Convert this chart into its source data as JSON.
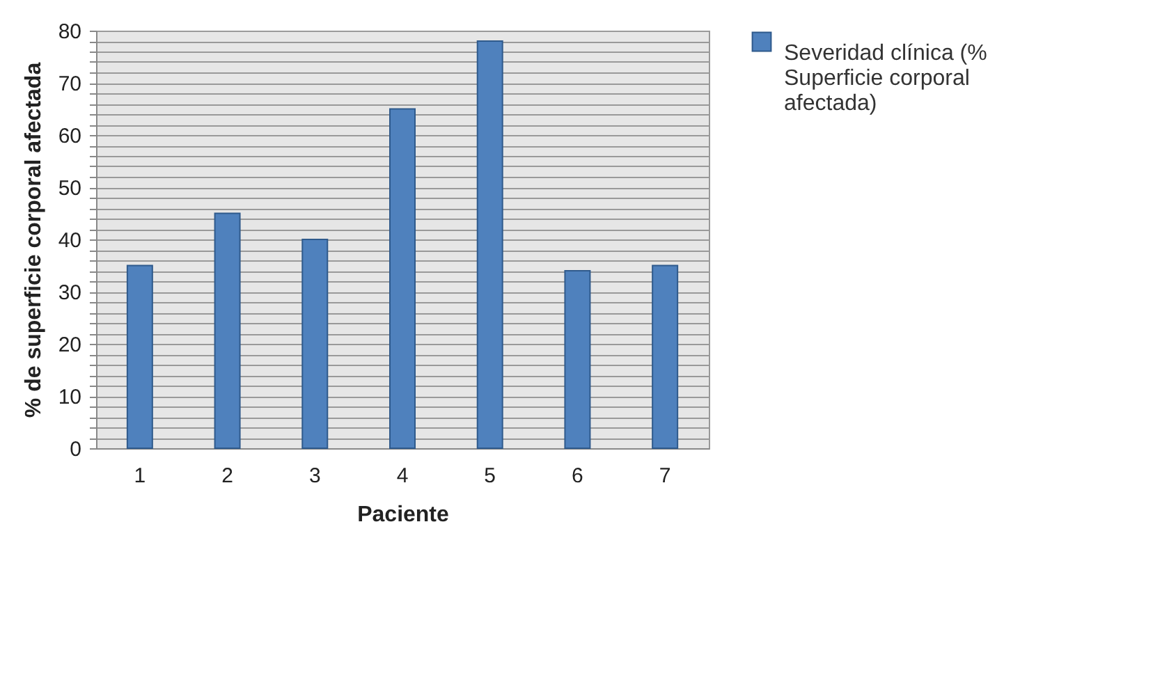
{
  "chart_data": {
    "type": "bar",
    "xlabel": "Paciente",
    "ylabel": "% de superficie corporal afectada",
    "categories": [
      "1",
      "2",
      "3",
      "4",
      "5",
      "6",
      "7"
    ],
    "series": [
      {
        "name": "Severidad clínica (% Superficie corporal afectada)",
        "color": "#4f81bd",
        "values": [
          35,
          45,
          40,
          65,
          78,
          34,
          35
        ]
      }
    ],
    "ylim": [
      0,
      80
    ],
    "yticks": [
      0,
      {
        "value": 2,
        "label": null
      },
      {
        "value": 4,
        "label": null
      },
      {
        "value": 6,
        "label": null
      },
      {
        "value": 8,
        "label": null
      },
      10,
      {
        "value": 12,
        "label": null
      },
      {
        "value": 14,
        "label": null
      },
      {
        "value": 16,
        "label": null
      },
      {
        "value": 18,
        "label": null
      },
      20,
      {
        "value": 22,
        "label": null
      },
      {
        "value": 24,
        "label": null
      },
      {
        "value": 26,
        "label": null
      },
      {
        "value": 28,
        "label": null
      },
      30,
      {
        "value": 32,
        "label": null
      },
      {
        "value": 34,
        "label": null
      },
      {
        "value": 36,
        "label": null
      },
      {
        "value": 38,
        "label": null
      },
      40,
      {
        "value": 42,
        "label": null
      },
      {
        "value": 44,
        "label": null
      },
      {
        "value": 46,
        "label": null
      },
      {
        "value": 48,
        "label": null
      },
      50,
      {
        "value": 52,
        "label": null
      },
      {
        "value": 54,
        "label": null
      },
      {
        "value": 56,
        "label": null
      },
      {
        "value": 58,
        "label": null
      },
      60,
      {
        "value": 62,
        "label": null
      },
      {
        "value": 64,
        "label": null
      },
      {
        "value": 66,
        "label": null
      },
      {
        "value": 68,
        "label": null
      },
      70,
      {
        "value": 72,
        "label": null
      },
      {
        "value": 74,
        "label": null
      },
      {
        "value": 76,
        "label": null
      },
      {
        "value": 78,
        "label": null
      },
      80
    ],
    "grid": "y",
    "legend": "right"
  }
}
